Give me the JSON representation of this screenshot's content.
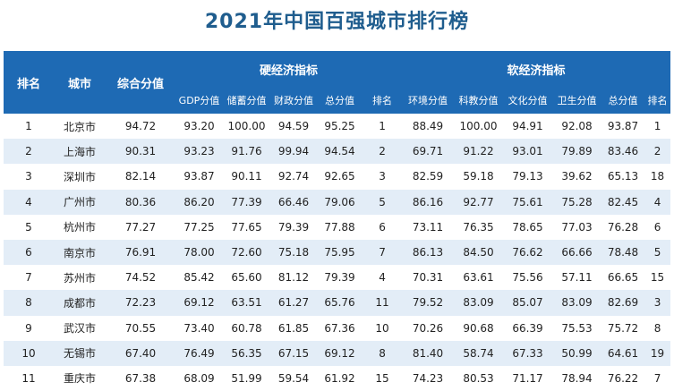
{
  "title": "2021年中国百强城市排行榜",
  "header": {
    "rank": "排名",
    "city": "城市",
    "score": "综合分值",
    "hard_group": "硬经济指标",
    "soft_group": "软经济指标",
    "hard_cols": [
      "GDP分值",
      "储蓄分值",
      "财政分值",
      "总分值",
      "排名"
    ],
    "soft_cols": [
      "环境分值",
      "科教分值",
      "文化分值",
      "卫生分值",
      "总分值",
      "排名"
    ]
  },
  "rows": [
    [
      "1",
      "北京市",
      "94.72",
      "93.20",
      "100.00",
      "94.59",
      "95.25",
      "1",
      "88.49",
      "100.00",
      "94.91",
      "92.08",
      "93.87",
      "1"
    ],
    [
      "2",
      "上海市",
      "90.31",
      "93.23",
      "91.76",
      "99.94",
      "94.54",
      "2",
      "69.71",
      "91.22",
      "93.01",
      "79.89",
      "83.46",
      "2"
    ],
    [
      "3",
      "深圳市",
      "82.14",
      "93.87",
      "90.11",
      "92.74",
      "92.65",
      "3",
      "82.59",
      "59.18",
      "79.13",
      "39.62",
      "65.13",
      "18"
    ],
    [
      "4",
      "广州市",
      "80.36",
      "86.20",
      "77.39",
      "66.46",
      "79.06",
      "5",
      "86.16",
      "92.77",
      "75.61",
      "75.28",
      "82.45",
      "4"
    ],
    [
      "5",
      "杭州市",
      "77.27",
      "77.25",
      "77.65",
      "79.39",
      "77.88",
      "6",
      "73.11",
      "76.35",
      "78.65",
      "77.03",
      "76.28",
      "6"
    ],
    [
      "6",
      "南京市",
      "76.91",
      "78.00",
      "72.60",
      "75.18",
      "75.95",
      "7",
      "86.13",
      "84.50",
      "76.62",
      "66.66",
      "78.48",
      "5"
    ],
    [
      "7",
      "苏州市",
      "74.52",
      "85.42",
      "65.60",
      "81.12",
      "79.39",
      "4",
      "70.31",
      "63.61",
      "75.56",
      "57.11",
      "66.65",
      "15"
    ],
    [
      "8",
      "成都市",
      "72.23",
      "69.12",
      "63.51",
      "61.27",
      "65.76",
      "11",
      "79.52",
      "83.09",
      "85.07",
      "83.09",
      "82.69",
      "3"
    ],
    [
      "9",
      "武汉市",
      "70.55",
      "73.40",
      "60.78",
      "61.85",
      "67.36",
      "10",
      "70.26",
      "90.68",
      "66.39",
      "75.53",
      "75.72",
      "8"
    ],
    [
      "10",
      "无锡市",
      "67.40",
      "76.49",
      "56.35",
      "67.15",
      "69.12",
      "8",
      "81.40",
      "58.74",
      "67.33",
      "50.99",
      "64.61",
      "19"
    ],
    [
      "11",
      "重庆市",
      "67.38",
      "68.09",
      "51.99",
      "59.54",
      "61.92",
      "15",
      "74.23",
      "80.53",
      "71.17",
      "78.94",
      "76.22",
      "7"
    ]
  ]
}
